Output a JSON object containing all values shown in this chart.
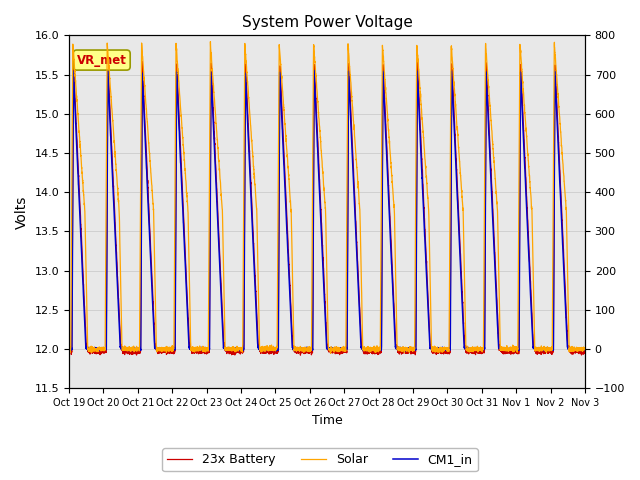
{
  "title": "System Power Voltage",
  "xlabel": "Time",
  "ylabel_left": "Volts",
  "ylim_left": [
    11.5,
    16.0
  ],
  "ylim_right": [
    -100,
    800
  ],
  "yticks_left": [
    11.5,
    12.0,
    12.5,
    13.0,
    13.5,
    14.0,
    14.5,
    15.0,
    15.5,
    16.0
  ],
  "yticks_right": [
    -100,
    0,
    100,
    200,
    300,
    400,
    500,
    600,
    700,
    800
  ],
  "xtick_labels": [
    "Oct 19",
    "Oct 20",
    "Oct 21",
    "Oct 22",
    "Oct 23",
    "Oct 24",
    "Oct 25",
    "Oct 26",
    "Oct 27",
    "Oct 28",
    "Oct 29",
    "Oct 30",
    "Oct 31",
    "Nov 1",
    "Nov 2",
    "Nov 3"
  ],
  "battery_color": "#CC0000",
  "solar_color": "#FFA500",
  "cm1_color": "#0000CC",
  "legend_labels": [
    "23x Battery",
    "Solar",
    "CM1_in"
  ],
  "annotation_text": "VR_met",
  "annotation_color": "#CC0000",
  "annotation_bg": "#FFFF88",
  "annotation_border": "#999900",
  "grid_color": "#D0D0D0",
  "plot_bg": "#E8E8E8",
  "fig_bg": "#FFFFFF",
  "n_days": 15,
  "n_points": 4500
}
